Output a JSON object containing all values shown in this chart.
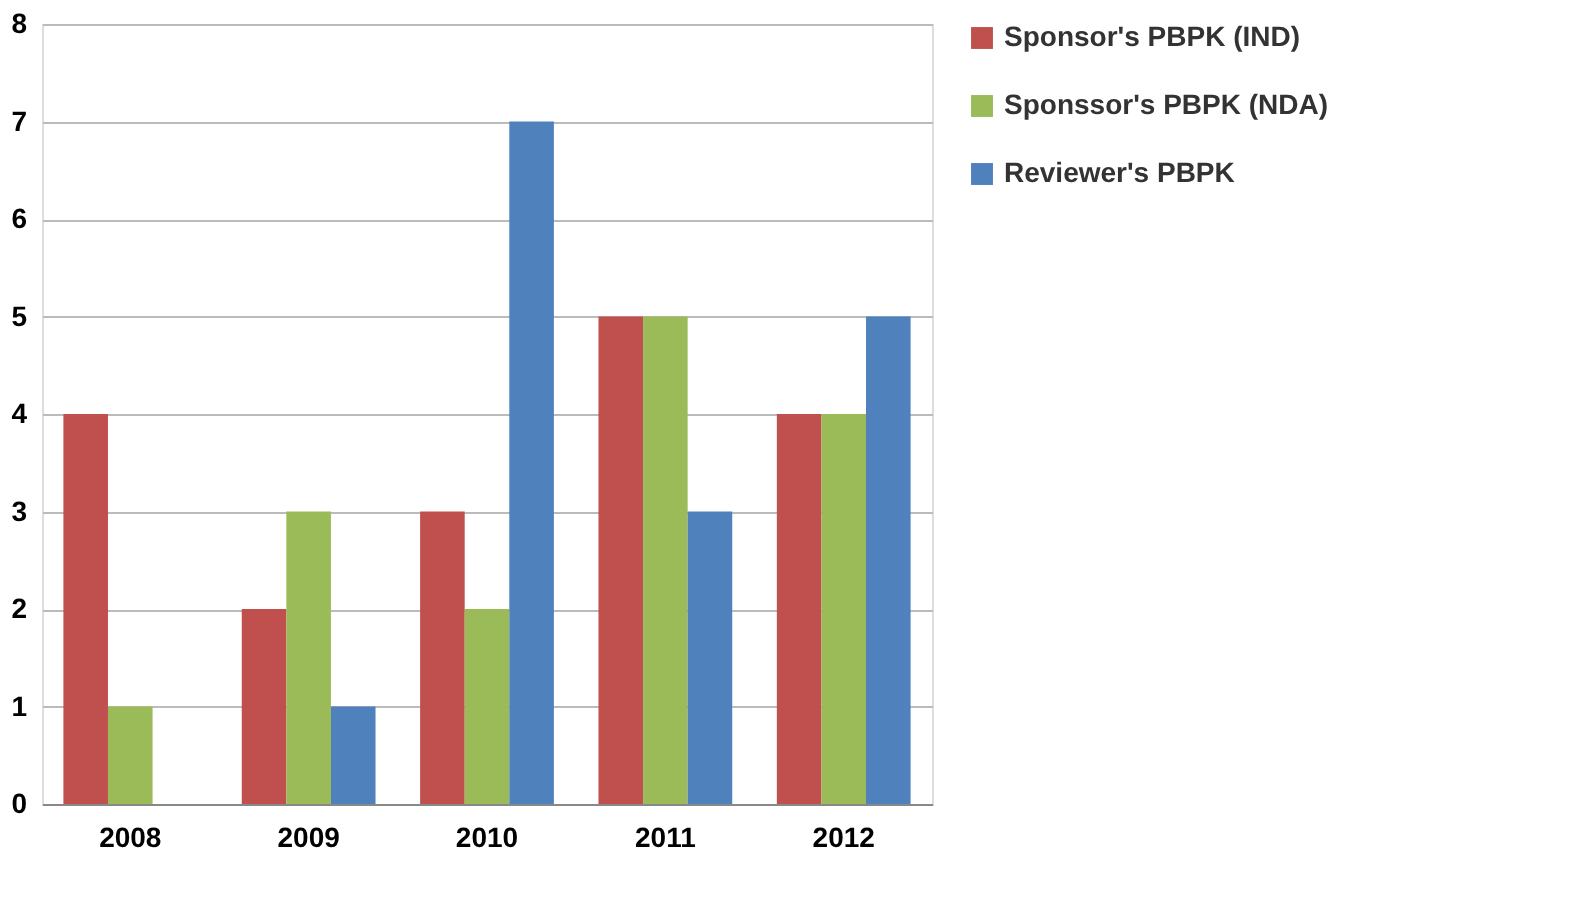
{
  "chart_data": {
    "type": "bar",
    "categories": [
      "2008",
      "2009",
      "2010",
      "2011",
      "2012"
    ],
    "series": [
      {
        "name": "Sponsor's PBPK (IND)",
        "color": "#c0504d",
        "values": [
          4,
          2,
          3,
          5,
          4
        ]
      },
      {
        "name": "Sponssor's PBPK (NDA)",
        "color": "#9bbb59",
        "values": [
          1,
          3,
          2,
          5,
          4
        ]
      },
      {
        "name": "Reviewer's PBPK",
        "color": "#4f81bd",
        "values": [
          0,
          1,
          7,
          3,
          5
        ]
      }
    ],
    "ylim": [
      0,
      8
    ],
    "yticks": [
      0,
      1,
      2,
      3,
      4,
      5,
      6,
      7,
      8
    ],
    "grid": "y",
    "legend": "right"
  }
}
